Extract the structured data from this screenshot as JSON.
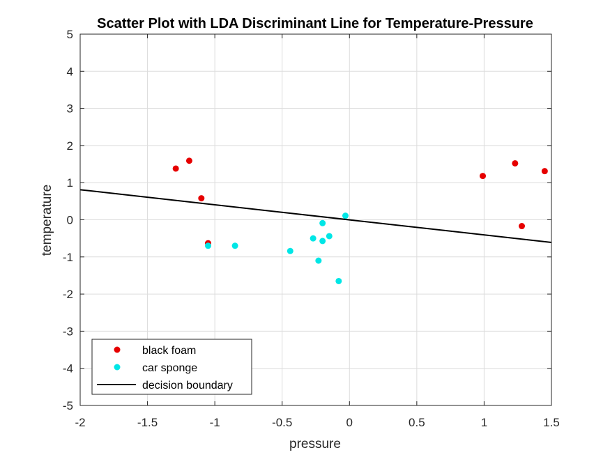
{
  "chart_data": {
    "type": "scatter",
    "title": "Scatter Plot with LDA Discriminant Line for Temperature-Pressure",
    "xlabel": "pressure",
    "ylabel": "temperature",
    "xlim": [
      -2,
      1.5
    ],
    "ylim": [
      -5,
      5
    ],
    "xticks": [
      -2,
      -1.5,
      -1,
      -0.5,
      0,
      0.5,
      1,
      1.5
    ],
    "yticks": [
      -5,
      -4,
      -3,
      -2,
      -1,
      0,
      1,
      2,
      3,
      4,
      5
    ],
    "xtick_labels": [
      "-2",
      "-1.5",
      "-1",
      "-0.5",
      "0",
      "0.5",
      "1",
      "1.5"
    ],
    "ytick_labels": [
      "-5",
      "-4",
      "-3",
      "-2",
      "-1",
      "0",
      "1",
      "2",
      "3",
      "4",
      "5"
    ],
    "grid": true,
    "legend_position": "bottom-left",
    "series": [
      {
        "name": "black foam",
        "kind": "points",
        "color": "#e60000",
        "points": [
          {
            "x": -1.29,
            "y": 1.38
          },
          {
            "x": -1.19,
            "y": 1.59
          },
          {
            "x": -1.1,
            "y": 0.58
          },
          {
            "x": -1.05,
            "y": -0.63
          },
          {
            "x": 0.99,
            "y": 1.18
          },
          {
            "x": 1.23,
            "y": 1.52
          },
          {
            "x": 1.28,
            "y": -0.17
          },
          {
            "x": 1.45,
            "y": 1.31
          }
        ]
      },
      {
        "name": "car sponge",
        "kind": "points",
        "color": "#00e6e6",
        "points": [
          {
            "x": -1.05,
            "y": -0.7
          },
          {
            "x": -0.85,
            "y": -0.7
          },
          {
            "x": -0.44,
            "y": -0.84
          },
          {
            "x": -0.27,
            "y": -0.5
          },
          {
            "x": -0.23,
            "y": -1.1
          },
          {
            "x": -0.2,
            "y": -0.57
          },
          {
            "x": -0.2,
            "y": -0.09
          },
          {
            "x": -0.15,
            "y": -0.44
          },
          {
            "x": -0.08,
            "y": -1.65
          },
          {
            "x": -0.03,
            "y": 0.11
          }
        ]
      },
      {
        "name": "decision boundary",
        "kind": "line",
        "color": "#000000",
        "points": [
          {
            "x": -2,
            "y": 0.81
          },
          {
            "x": 1.5,
            "y": -0.61
          }
        ]
      }
    ]
  }
}
